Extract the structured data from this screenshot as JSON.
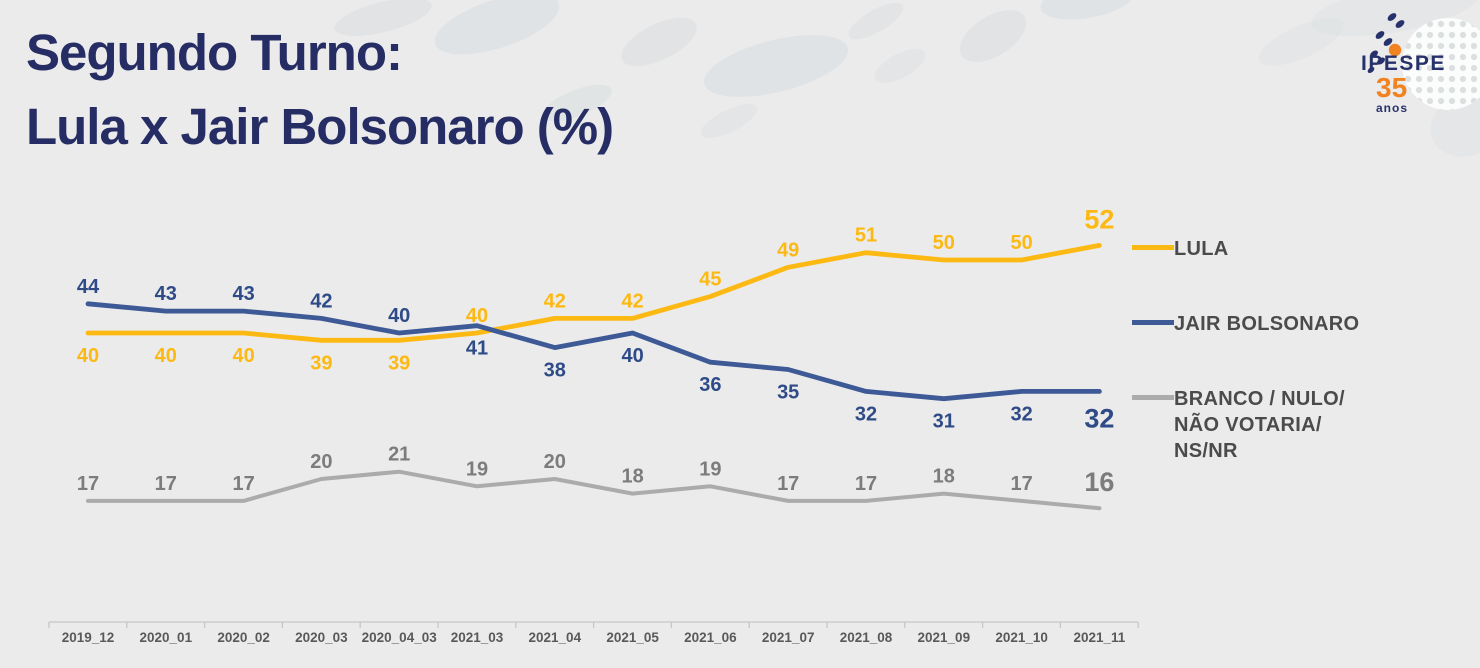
{
  "title": {
    "line1": "Segundo Turno:",
    "line2": "Lula x Jair Bolsonaro (%)"
  },
  "logo": {
    "name": "IPESPE",
    "years": "35",
    "anos": "anos"
  },
  "colors": {
    "background": "#ebebeb",
    "title": "#262d64",
    "logo_navy": "#27316b",
    "logo_orange": "#f08220",
    "axis_label": "#595959",
    "axis_line": "#c6c6c6"
  },
  "chart_data": {
    "type": "line",
    "title": "Segundo Turno: Lula x Jair Bolsonaro (%)",
    "categories": [
      "2019_12",
      "2020_01",
      "2020_02",
      "2020_03",
      "2020_04_03",
      "2021_03",
      "2021_04",
      "2021_05",
      "2021_06",
      "2021_07",
      "2021_08",
      "2021_09",
      "2021_10",
      "2021_11"
    ],
    "series": [
      {
        "key": "lula",
        "name": "LULA",
        "color": "#fdb913",
        "label_color": "#fdb913",
        "values": [
          40,
          40,
          40,
          39,
          39,
          40,
          42,
          42,
          45,
          49,
          51,
          50,
          50,
          52
        ],
        "label_side": [
          "below",
          "below",
          "below",
          "below",
          "below",
          "above",
          "above",
          "above",
          "above",
          "above",
          "above",
          "above",
          "above",
          "above"
        ]
      },
      {
        "key": "jair-bolsonaro",
        "name": "JAIR BOLSONARO",
        "color": "#3d5a96",
        "label_color": "#2f4b87",
        "values": [
          44,
          43,
          43,
          42,
          40,
          41,
          38,
          40,
          36,
          35,
          32,
          31,
          32,
          32
        ],
        "label_side": [
          "above",
          "above",
          "above",
          "above",
          "above",
          "below",
          "below",
          "below",
          "below",
          "below",
          "below",
          "below",
          "below",
          "below"
        ]
      },
      {
        "key": "branco-nulo",
        "name": "BRANCO / NULO/\nNÃO VOTARIA/\nNS/NR",
        "color": "#ababab",
        "label_color": "#7c7c7c",
        "values": [
          17,
          17,
          17,
          20,
          21,
          19,
          20,
          18,
          19,
          17,
          17,
          18,
          17,
          16
        ],
        "label_side": [
          "above",
          "above",
          "above",
          "above",
          "above",
          "above",
          "above",
          "above",
          "above",
          "above",
          "above",
          "above",
          "above",
          "above"
        ]
      }
    ],
    "ylim": [
      10,
      57
    ],
    "grid": false,
    "legend_position": "right",
    "last_label_emphasis": true,
    "unit": "%"
  }
}
